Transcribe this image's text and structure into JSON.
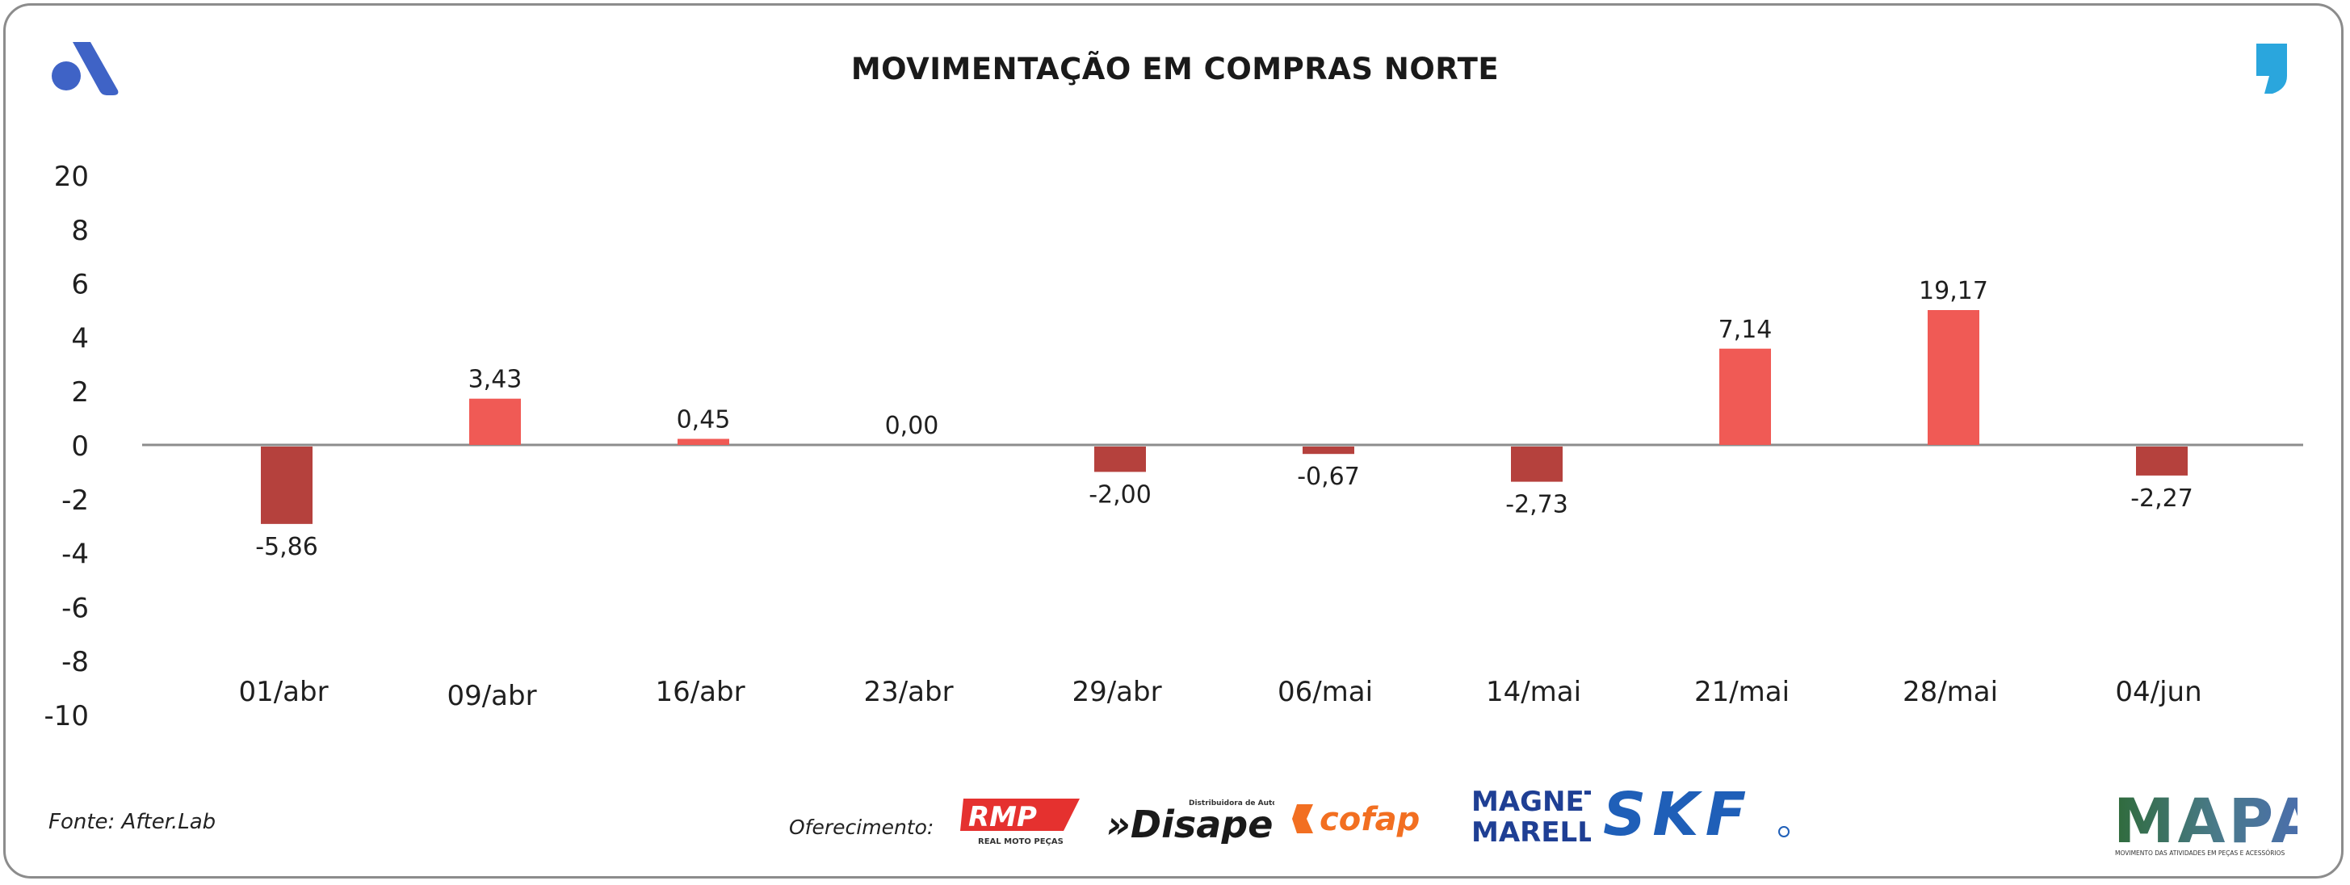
{
  "header": {
    "title": "MOVIMENTAÇÃO EM COMPRAS NORTE"
  },
  "footer": {
    "source": "Fonte: After.Lab",
    "sponsor_label": "Oferecimento:",
    "sponsors": {
      "rmp": "RMP",
      "rmp_sub": "REAL MOTO PEÇAS",
      "disape": "»Disape",
      "disape_sub": "Distribuidora de Autopeças",
      "cofap": "cofap",
      "magneti_1": "MAGNETI",
      "magneti_2": "MARELLI",
      "skf": "SKF",
      "mapa": "MAPA",
      "mapa_sub": "MOVIMENTO DAS ATIVIDADES EM PEÇAS E ACESSÓRIOS"
    }
  },
  "colors": {
    "positive": "#f05a55",
    "negative": "#b5413d",
    "axis": "#8c8c8c",
    "brand_blue": "#3f63c6",
    "quote_blue": "#2aa6dd"
  },
  "icons": {
    "top_left": "after-logo-icon",
    "top_right": "quote-mark-icon"
  },
  "chart_data": {
    "type": "bar",
    "title": "MOVIMENTAÇÃO EM COMPRAS NORTE",
    "categories": [
      "01/abr",
      "09/abr",
      "16/abr",
      "23/abr",
      "29/abr",
      "06/mai",
      "14/mai",
      "21/mai",
      "28/mai",
      "04/jun"
    ],
    "values": [
      -5.86,
      3.43,
      0.45,
      0.0,
      -2.0,
      -0.67,
      -2.73,
      7.14,
      19.17,
      -2.27
    ],
    "value_labels": [
      "-5,86",
      "3,43",
      "0,45",
      "0,00",
      "-2,00",
      "-0,67",
      "-2,73",
      "7,14",
      "19,17",
      "-2,27"
    ],
    "y_tick_labels": [
      "20",
      "8",
      "6",
      "4",
      "2",
      "0",
      "-2",
      "-4",
      "-6",
      "-8",
      "-10"
    ],
    "grid": false,
    "legend": "none"
  }
}
